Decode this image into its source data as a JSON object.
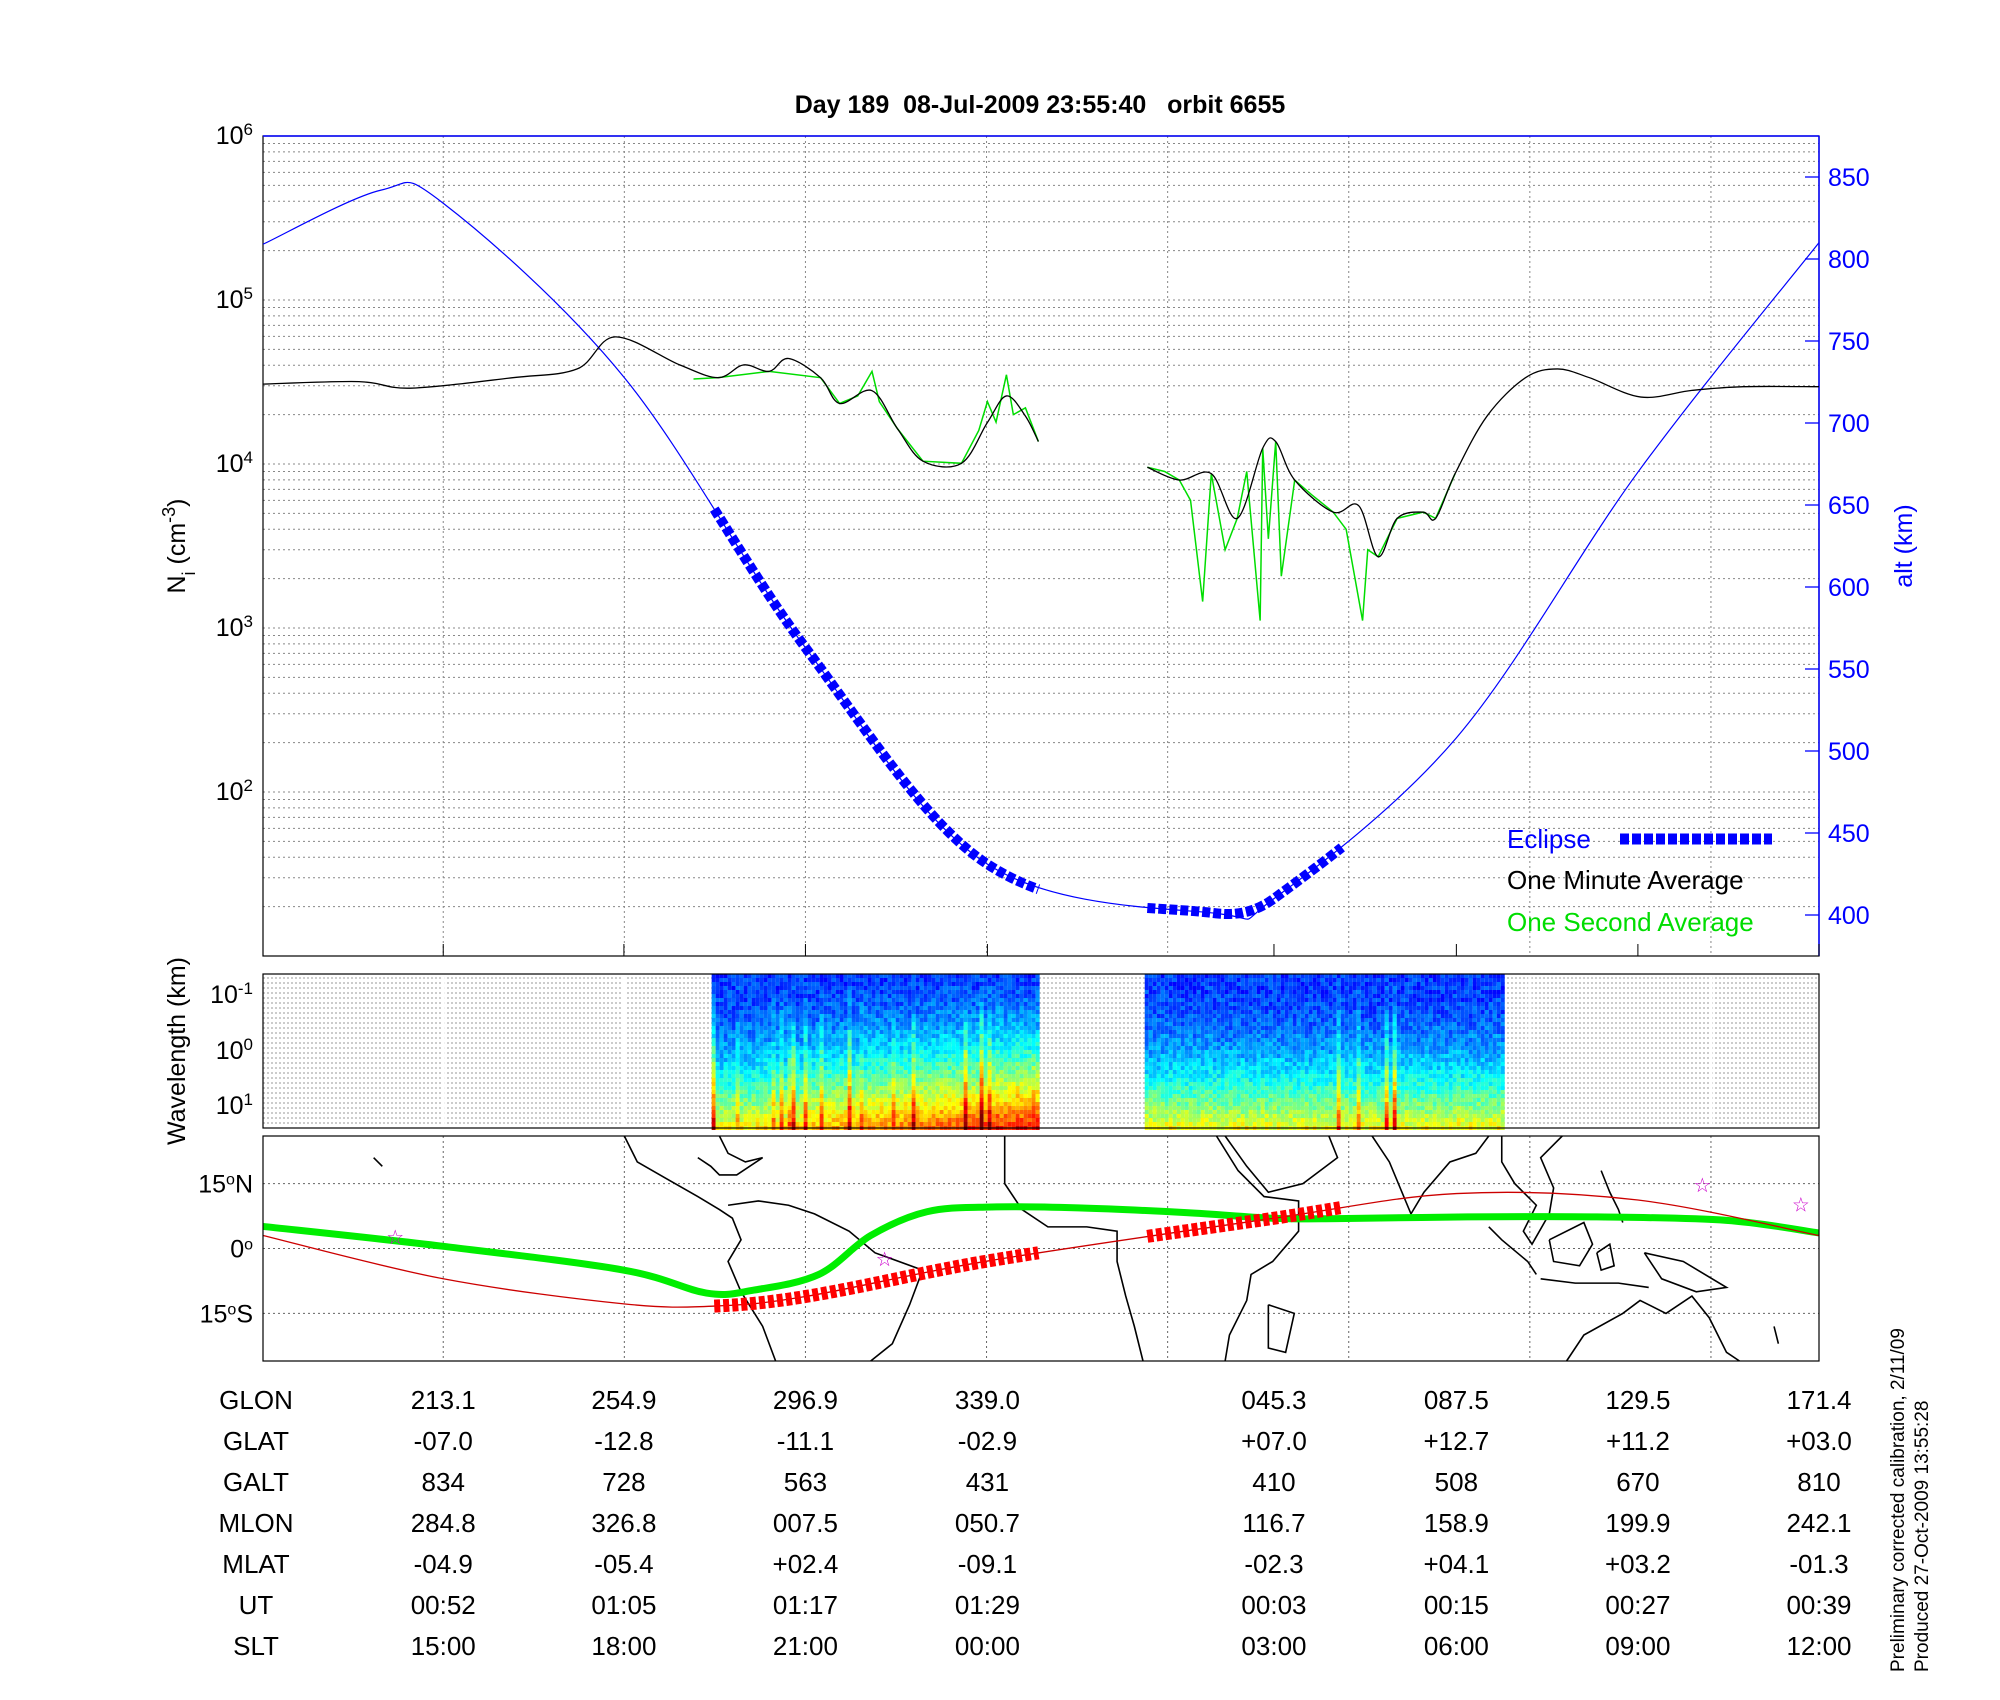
{
  "title": "Day 189  08-Jul-2009 23:55:40   orbit 6655",
  "footnote": [
    "Preliminary corrected calibration, 2/11/09",
    "Produced 27-Oct-2009 13:55:28"
  ],
  "colors": {
    "altitude": "#0000ff",
    "eclipse": "#0000ff",
    "one_minute": "#000000",
    "one_second": "#00dd00",
    "ground_track": "#cc0000",
    "track_eclipse": "#ff0000",
    "mag_equator": "#00ee00",
    "stars": "#cc00cc"
  },
  "chart_data": [
    {
      "type": "line",
      "panel": "density-altitude",
      "x_unit": "GLON (deg, unwrapped)",
      "xlim": [
        171.4,
        531.4
      ],
      "ylabel": "N_i (cm^-3)",
      "ylabel_main": "N",
      "ylabel_sub": "i",
      "ylabel_rest": " (cm",
      "ylabel_sup": "-3",
      "ylabel_end": ")",
      "yscale": "log",
      "ylim": [
        10,
        1000000
      ],
      "ytick_labels": [
        {
          "base": "10",
          "exp": "6",
          "value": 1000000
        },
        {
          "base": "10",
          "exp": "5",
          "value": 100000
        },
        {
          "base": "10",
          "exp": "4",
          "value": 10000
        },
        {
          "base": "10",
          "exp": "3",
          "value": 1000
        },
        {
          "base": "10",
          "exp": "2",
          "value": 100
        }
      ],
      "y2label": "alt (km)",
      "y2lim": [
        375,
        875
      ],
      "y2ticks": [
        "850",
        "800",
        "750",
        "700",
        "650",
        "600",
        "550",
        "500",
        "450",
        "400"
      ],
      "grid": true,
      "legend": {
        "placement": "bottom-right",
        "entries": [
          "Eclipse",
          "One Minute Average",
          "One Second Average"
        ]
      },
      "altitude": {
        "x": [
          171.4,
          198.7,
          213.1,
          254.9,
          296.9,
          339.0,
          392.0,
          405.3,
          447.5,
          489.5,
          531.4
        ],
        "y": [
          809,
          842,
          834,
          728,
          563,
          431,
          401,
          410,
          508,
          670,
          810
        ]
      },
      "eclipse_ranges": [
        [
          275.8,
          350.8
        ],
        [
          376.0,
          421.1
        ]
      ],
      "one_minute_average": [
        {
          "x": [
            171.4,
            193.6,
            205.5,
            229.2,
            244.1,
            252.9,
            267.8,
            276.7,
            282.6,
            288.5,
            293.0,
            300.4,
            304.8,
            312.3,
            318.2,
            324.1,
            333.0,
            339.0,
            343.4,
            347.8,
            350.8
          ],
          "y": [
            30700,
            31800,
            29000,
            33600,
            38000,
            59600,
            40200,
            33600,
            40200,
            36700,
            44000,
            33600,
            23400,
            28000,
            16400,
            10400,
            10100,
            17900,
            26000,
            19600,
            13700
          ]
        },
        {
          "x": [
            376.0,
            383.4,
            390.8,
            396.8,
            402.7,
            405.7,
            410.1,
            419.0,
            424.9,
            429.4,
            433.8,
            439.8,
            442.7,
            447.2,
            454.6,
            463.5,
            470.9,
            478.3,
            490.2,
            502.0,
            513.9,
            531.4
          ],
          "y": [
            9550,
            7980,
            8730,
            4660,
            12500,
            13700,
            7980,
            5090,
            5570,
            2720,
            4660,
            5090,
            4660,
            8730,
            19600,
            33600,
            38000,
            33600,
            25600,
            28100,
            29600,
            29600
          ]
        }
      ],
      "one_second_average": [
        {
          "x": [
            271.0,
            276.7,
            288.5,
            300.4,
            304.8,
            309.0,
            312.3,
            314.0,
            318.2,
            324.1,
            333.0,
            337.0,
            339.0,
            341.0,
            343.4,
            345.0,
            347.8,
            350.8
          ],
          "y": [
            33000,
            33600,
            36700,
            33600,
            23400,
            26000,
            36700,
            24000,
            16400,
            10400,
            10100,
            16000,
            24000,
            18000,
            35000,
            20000,
            22000,
            13700
          ]
        },
        {
          "x": [
            376.0,
            380.0,
            383.4,
            386.0,
            388.8,
            390.8,
            394.0,
            396.8,
            399.0,
            402.1,
            402.7,
            404.0,
            405.7,
            407.0,
            410.1,
            414.0,
            419.0,
            422.0,
            425.8,
            427.0,
            429.4,
            433.8,
            439.8,
            442.7,
            447.2
          ],
          "y": [
            9550,
            9000,
            7980,
            6000,
            1450,
            8730,
            3000,
            4660,
            9000,
            1110,
            12500,
            3500,
            13700,
            2070,
            7980,
            6500,
            5090,
            4000,
            1110,
            3000,
            2720,
            4660,
            5090,
            4660,
            8730
          ]
        }
      ]
    },
    {
      "type": "heatmap",
      "panel": "spectrogram",
      "ylabel": "Wavelength (km)",
      "ytick_labels": [
        {
          "base": "10",
          "exp": "-1"
        },
        {
          "base": "10",
          "exp": "0"
        },
        {
          "base": "10",
          "exp": "1"
        }
      ],
      "x_ranges": [
        [
          275.2,
          350.8
        ],
        [
          375.4,
          458.2
        ]
      ],
      "colormap": "jet"
    },
    {
      "type": "line",
      "panel": "ground-track-map",
      "ylim": [
        -26,
        26
      ],
      "ytick_labels": [
        {
          "deg": "15",
          "hemi": "N",
          "lat": 15
        },
        {
          "deg": "0",
          "hemi": "",
          "lat": 0
        },
        {
          "deg": "15",
          "hemi": "S",
          "lat": -15
        }
      ],
      "ground_track": {
        "x": [
          171.4,
          213.1,
          254.9,
          276.0,
          296.9,
          339.0,
          405.3,
          447.5,
          489.5,
          531.4
        ],
        "y": [
          3.0,
          -7.0,
          -12.8,
          -13.3,
          -11.1,
          -2.9,
          7.0,
          12.7,
          11.2,
          3.0
        ]
      },
      "magnetic_equator": {
        "x": [
          171.4,
          213.1,
          254.9,
          274.0,
          285.0,
          300.0,
          312.0,
          325.0,
          340.0,
          360.0,
          385.0,
          405.0,
          420.0,
          450.0,
          480.0,
          510.0,
          531.4
        ],
        "y": [
          5.1,
          0.5,
          -5.0,
          -10.3,
          -9.6,
          -6.0,
          3.0,
          8.5,
          9.6,
          9.4,
          8.3,
          7.0,
          6.9,
          7.3,
          7.3,
          6.5,
          3.6
        ]
      },
      "stars": {
        "x": [
          202.0,
          315.2,
          504.4,
          527.2
        ],
        "y": [
          2.7,
          -2.4,
          14.7,
          10.2
        ]
      },
      "coastlines": [
        [
          [
            255,
            26
          ],
          [
            258,
            20
          ],
          [
            265,
            16
          ],
          [
            272,
            12
          ],
          [
            277,
            9
          ],
          [
            280,
            7
          ],
          [
            282,
            2
          ],
          [
            279,
            -3
          ],
          [
            282,
            -10
          ],
          [
            287,
            -18
          ],
          [
            290,
            -26
          ]
        ],
        [
          [
            277,
            26
          ],
          [
            279,
            22
          ],
          [
            283,
            20
          ],
          [
            287,
            21
          ],
          [
            281,
            17
          ],
          [
            277,
            17
          ],
          [
            275,
            19
          ],
          [
            272,
            21
          ]
        ],
        [
          [
            279,
            10
          ],
          [
            286,
            11
          ],
          [
            293,
            10
          ],
          [
            299,
            8
          ],
          [
            307,
            4
          ],
          [
            313,
            -1
          ],
          [
            324,
            -5
          ],
          [
            321,
            -13
          ],
          [
            317,
            -22
          ],
          [
            312,
            -26
          ]
        ],
        [
          [
            343,
            26
          ],
          [
            343,
            21
          ],
          [
            343,
            15
          ],
          [
            347,
            9
          ],
          [
            353,
            5
          ],
          [
            362,
            5
          ],
          [
            369,
            4
          ],
          [
            369,
            -3
          ],
          [
            371,
            -11
          ],
          [
            373,
            -18
          ],
          [
            375,
            -26
          ]
        ],
        [
          [
            392,
            26
          ],
          [
            397,
            18
          ],
          [
            403,
            12
          ],
          [
            411,
            11
          ],
          [
            411,
            4
          ],
          [
            405,
            -3
          ],
          [
            400,
            -6
          ],
          [
            399,
            -12
          ],
          [
            395,
            -20
          ],
          [
            394,
            -26
          ]
        ],
        [
          [
            404,
            -13
          ],
          [
            410,
            -15
          ],
          [
            408,
            -24
          ],
          [
            404,
            -23
          ],
          [
            404,
            -13
          ]
        ],
        [
          [
            394,
            26
          ],
          [
            399,
            19
          ],
          [
            404,
            13
          ],
          [
            412,
            15
          ],
          [
            420,
            21
          ],
          [
            418,
            26
          ]
        ],
        [
          [
            428,
            26
          ],
          [
            432,
            20
          ],
          [
            437,
            8
          ],
          [
            440,
            13
          ],
          [
            446,
            20
          ],
          [
            452,
            22
          ],
          [
            455,
            26
          ]
        ],
        [
          [
            458,
            26
          ],
          [
            458,
            20
          ],
          [
            461,
            15
          ],
          [
            466,
            10
          ],
          [
            463,
            4
          ],
          [
            465,
            1
          ],
          [
            469,
            8
          ],
          [
            470,
            14
          ],
          [
            467,
            21
          ],
          [
            472,
            26
          ]
        ],
        [
          [
            455,
            5
          ],
          [
            458,
            2
          ],
          [
            464,
            -3
          ],
          [
            466,
            -6
          ]
        ],
        [
          [
            467,
            -7
          ],
          [
            475,
            -8
          ],
          [
            485,
            -8
          ],
          [
            492,
            -9
          ]
        ],
        [
          [
            469,
            2
          ],
          [
            477,
            6
          ],
          [
            479,
            1
          ],
          [
            476,
            -4
          ],
          [
            470,
            -3
          ],
          [
            469,
            2
          ]
        ],
        [
          [
            480,
            -1
          ],
          [
            483,
            1
          ],
          [
            484,
            -4
          ],
          [
            481,
            -5
          ],
          [
            480,
            -1
          ]
        ],
        [
          [
            481,
            18
          ],
          [
            483,
            13
          ],
          [
            485,
            9
          ],
          [
            486,
            6
          ]
        ],
        [
          [
            491,
            -1
          ],
          [
            500,
            -3
          ],
          [
            510,
            -9
          ],
          [
            503,
            -10
          ],
          [
            495,
            -7
          ],
          [
            491,
            -1
          ]
        ],
        [
          [
            473,
            -26
          ],
          [
            477,
            -20
          ],
          [
            486,
            -15
          ],
          [
            490,
            -12
          ],
          [
            496,
            -15
          ],
          [
            502,
            -11
          ],
          [
            506,
            -16
          ],
          [
            510,
            -24
          ],
          [
            513,
            -26
          ]
        ],
        [
          [
            521,
            -18
          ],
          [
            522,
            -22
          ]
        ],
        [
          [
            197,
            21
          ],
          [
            199,
            19
          ]
        ]
      ]
    }
  ],
  "table": {
    "row_labels": [
      "GLON",
      "GLAT",
      "GALT",
      "MLON",
      "MLAT",
      "UT",
      "SLT"
    ],
    "columns": [
      {
        "x": 213.1,
        "values": [
          "213.1",
          "-07.0",
          "834",
          "284.8",
          "-04.9",
          "00:52",
          "15:00"
        ]
      },
      {
        "x": 254.9,
        "values": [
          "254.9",
          "-12.8",
          "728",
          "326.8",
          "-05.4",
          "01:05",
          "18:00"
        ]
      },
      {
        "x": 296.9,
        "values": [
          "296.9",
          "-11.1",
          "563",
          "007.5",
          "+02.4",
          "01:17",
          "21:00"
        ]
      },
      {
        "x": 339.0,
        "values": [
          "339.0",
          "-02.9",
          "431",
          "050.7",
          "-09.1",
          "01:29",
          "00:00"
        ]
      },
      {
        "x": 405.3,
        "values": [
          "045.3",
          "+07.0",
          "410",
          "116.7",
          "-02.3",
          "00:03",
          "03:00"
        ]
      },
      {
        "x": 447.5,
        "values": [
          "087.5",
          "+12.7",
          "508",
          "158.9",
          "+04.1",
          "00:15",
          "06:00"
        ]
      },
      {
        "x": 489.5,
        "values": [
          "129.5",
          "+11.2",
          "670",
          "199.9",
          "+03.2",
          "00:27",
          "09:00"
        ]
      },
      {
        "x": 531.4,
        "values": [
          "171.4",
          "+03.0",
          "810",
          "242.1",
          "-01.3",
          "00:39",
          "12:00"
        ]
      }
    ]
  }
}
